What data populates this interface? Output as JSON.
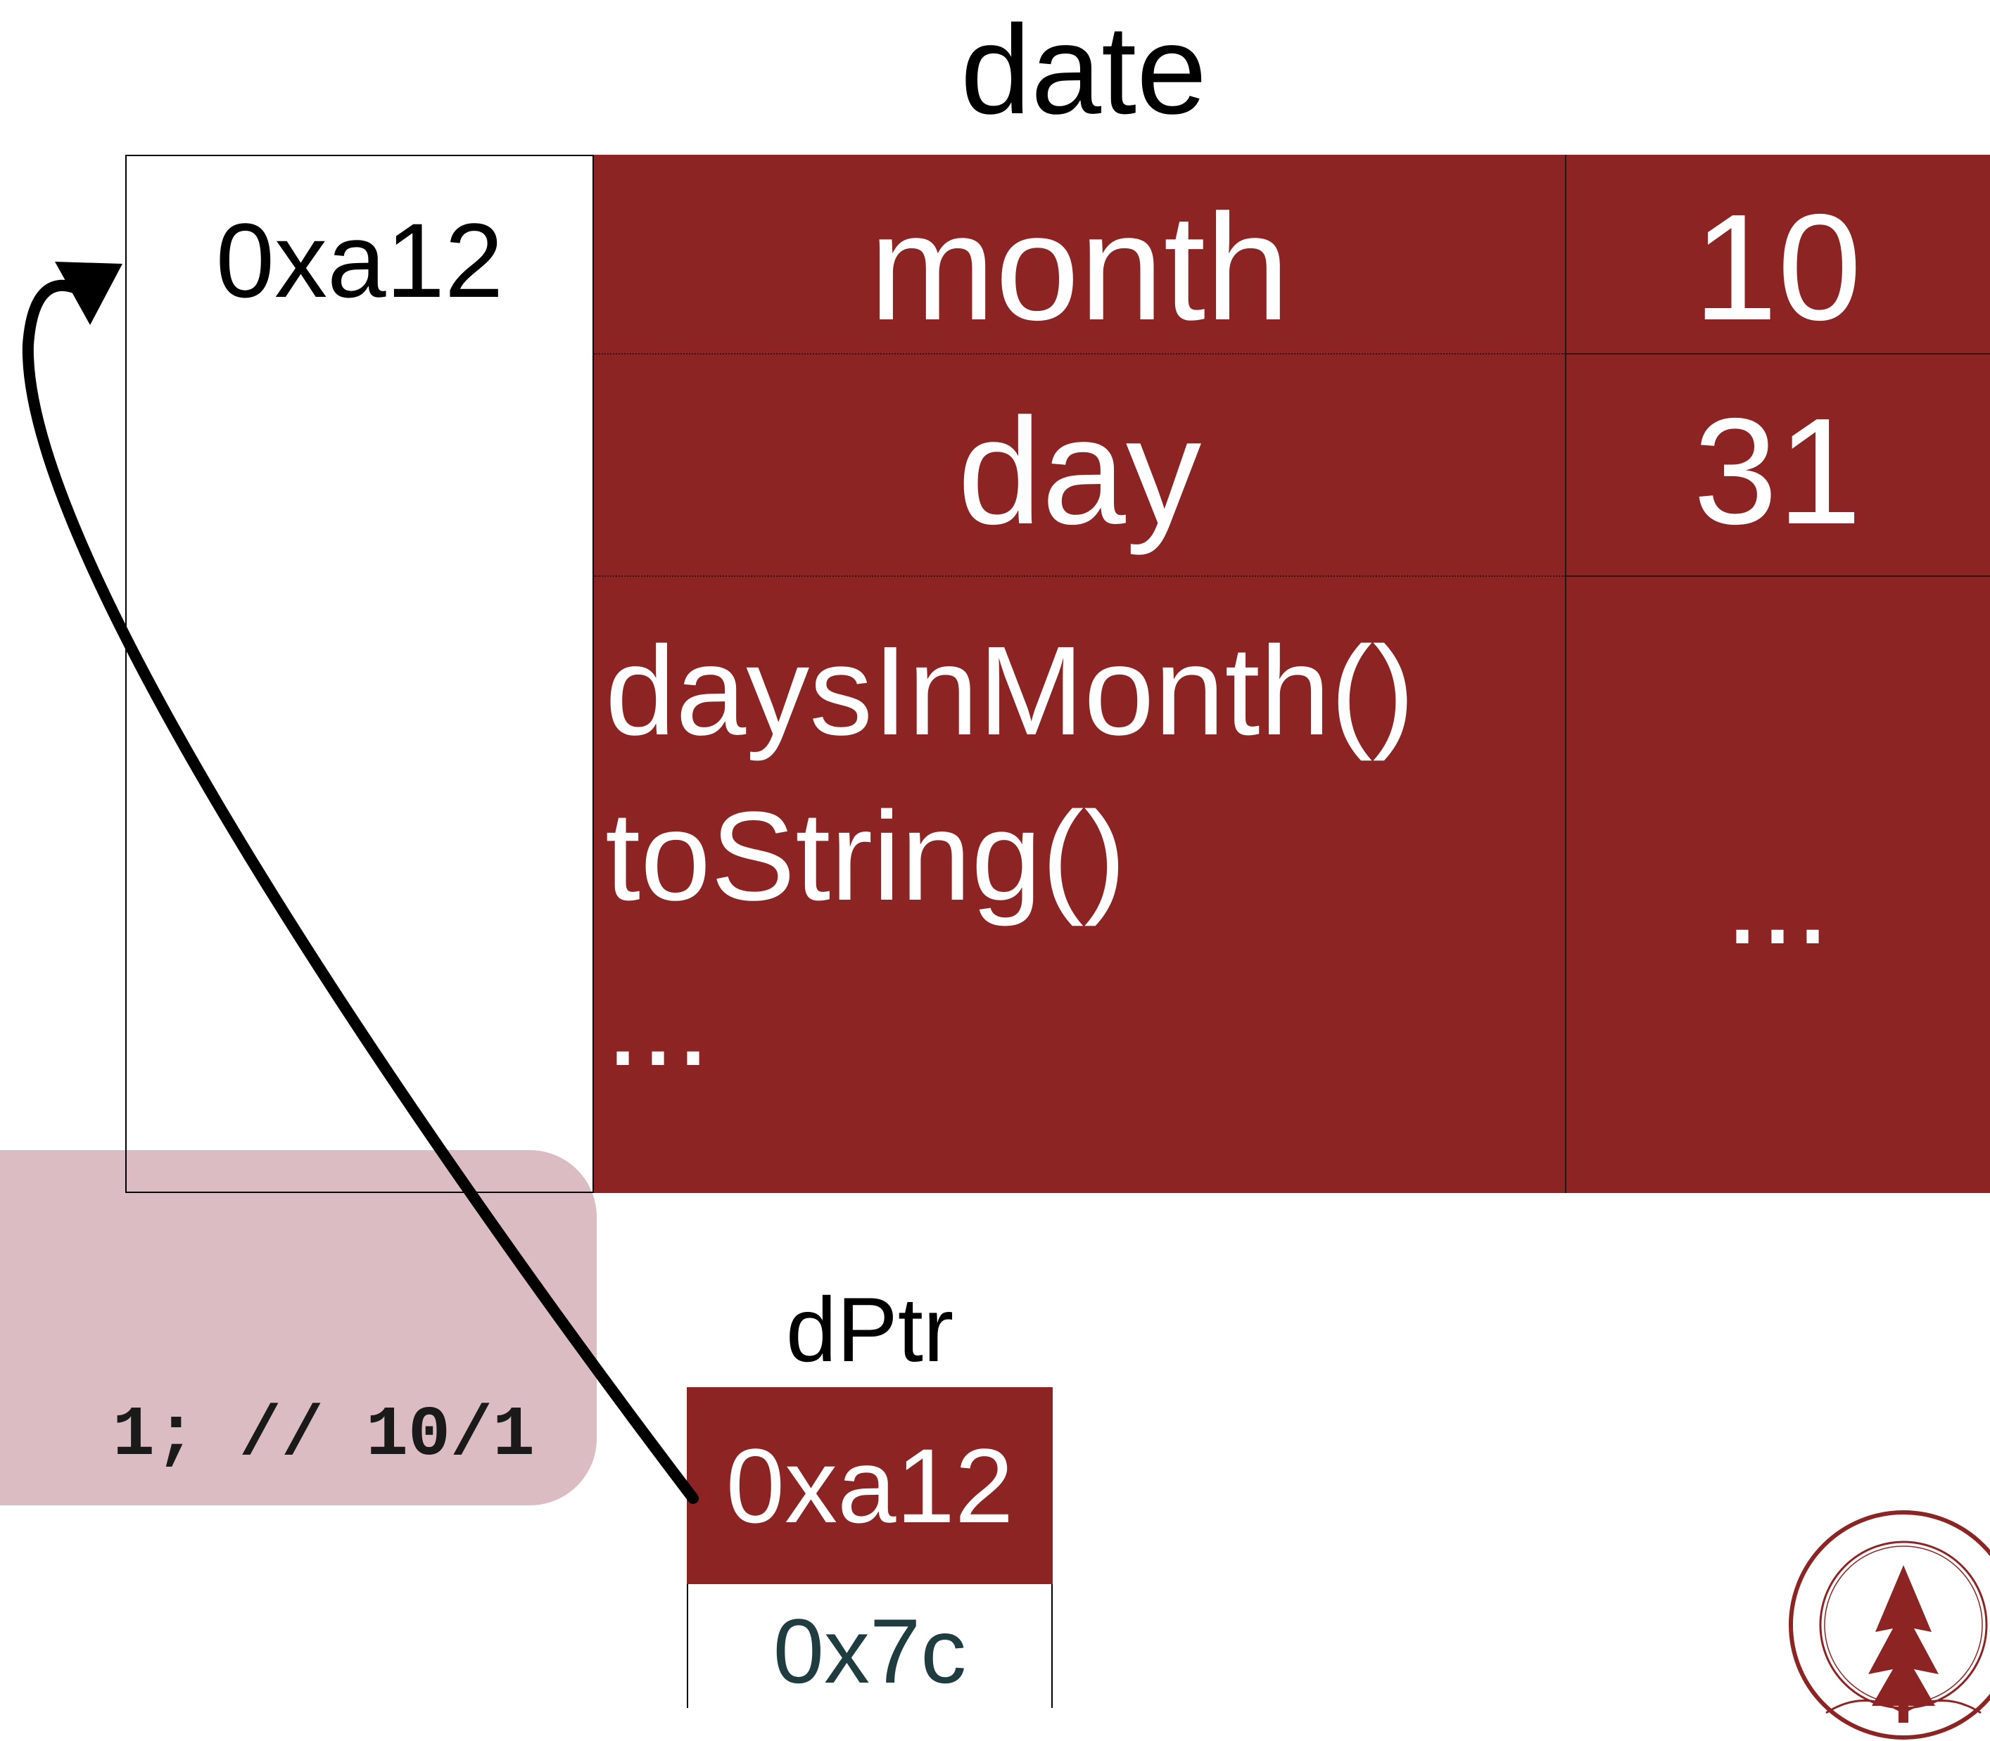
{
  "code_snippet": {
    "text": "1; // 10/1"
  },
  "object": {
    "title": "date",
    "address": "0xa12",
    "fields": [
      {
        "name": "month",
        "value": "10"
      },
      {
        "name": "day",
        "value": "31"
      }
    ],
    "methods": [
      "daysInMonth()",
      "toString()",
      "..."
    ],
    "methods_value": "..."
  },
  "pointer": {
    "name": "dPtr",
    "value": "0xa12",
    "address": "0x7c"
  },
  "colors": {
    "object_fill": "#8d2424",
    "code_bubble": "#dcbcc3",
    "pointer_address_text": "#1f3c40"
  }
}
